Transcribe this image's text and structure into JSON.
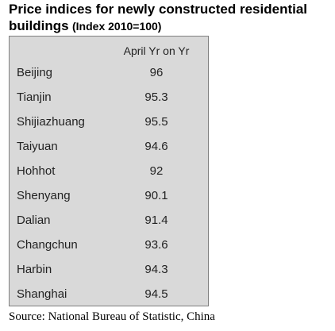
{
  "chart_data": {
    "type": "table",
    "title": "Price indices for newly constructed residential buildings",
    "subtitle": "(Index 2010=100)",
    "column_header": "April Yr on Yr",
    "categories": [
      "Beijing",
      "Tianjin",
      "Shijiazhuang",
      "Taiyuan",
      "Hohhot",
      "Shenyang",
      "Dalian",
      "Changchun",
      "Harbin",
      "Shanghai"
    ],
    "values": [
      "96",
      "95.3",
      "95.5",
      "94.6",
      "92",
      "90.1",
      "91.4",
      "93.6",
      "94.3",
      "94.5"
    ],
    "source": "Source: National Bureau of Statistic, China"
  }
}
